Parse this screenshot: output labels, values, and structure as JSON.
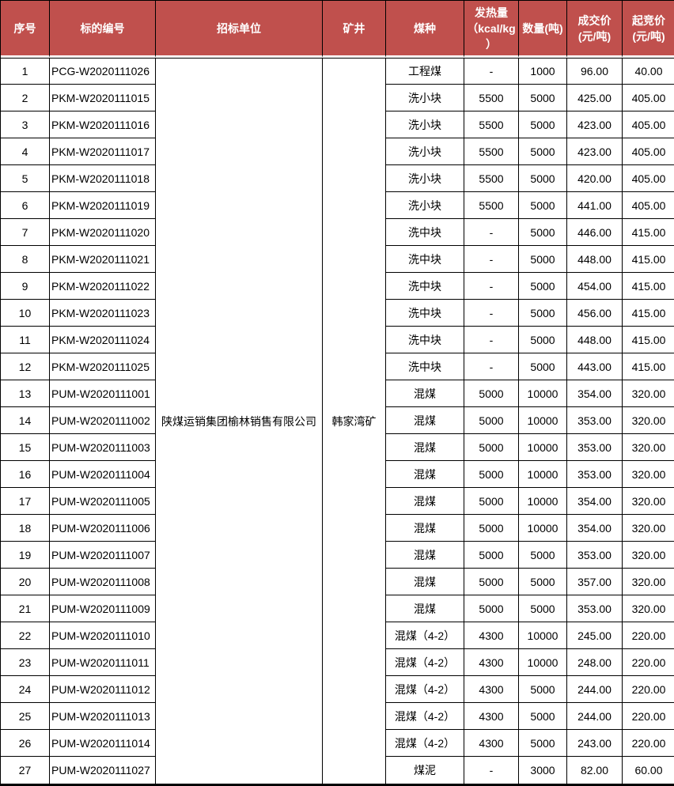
{
  "colors": {
    "header_bg": "#c0504d",
    "header_text": "#ffffff",
    "body_text": "#000000",
    "border": "#000000"
  },
  "table": {
    "columns": [
      {
        "key": "no",
        "label": "序号",
        "lines": [
          "序号"
        ]
      },
      {
        "key": "bid_no",
        "label": "标的编号",
        "lines": [
          "标的编号"
        ]
      },
      {
        "key": "bidding_unit",
        "label": "招标单位",
        "lines": [
          "招标单位"
        ]
      },
      {
        "key": "mine",
        "label": "矿井",
        "lines": [
          "矿井"
        ]
      },
      {
        "key": "coal_type",
        "label": "煤种",
        "lines": [
          "煤种"
        ]
      },
      {
        "key": "calorific",
        "label": "发热量（kcal/kg）",
        "lines": [
          "发热量",
          "（kcal/kg",
          "）"
        ]
      },
      {
        "key": "quantity",
        "label": "数量(吨)",
        "lines": [
          "数量(吨)"
        ]
      },
      {
        "key": "deal_price",
        "label": "成交价(元/吨)",
        "lines": [
          "成交价",
          "(元/吨)"
        ]
      },
      {
        "key": "start_price",
        "label": "起竞价(元/吨)",
        "lines": [
          "起竞价",
          "(元/吨)"
        ]
      }
    ],
    "merged_cells": {
      "bidding_unit": {
        "value": "陕煤运销集团榆林销售有限公司",
        "rowspan": 27
      },
      "mine": {
        "value": "韩家湾矿",
        "rowspan": 27
      }
    },
    "rows": [
      {
        "no": "1",
        "bid_no": "PCG-W2020111026",
        "coal_type": "工程煤",
        "calorific": "-",
        "quantity": "1000",
        "deal_price": "96.00",
        "start_price": "40.00"
      },
      {
        "no": "2",
        "bid_no": "PKM-W2020111015",
        "coal_type": "洗小块",
        "calorific": "5500",
        "quantity": "5000",
        "deal_price": "425.00",
        "start_price": "405.00"
      },
      {
        "no": "3",
        "bid_no": "PKM-W2020111016",
        "coal_type": "洗小块",
        "calorific": "5500",
        "quantity": "5000",
        "deal_price": "423.00",
        "start_price": "405.00"
      },
      {
        "no": "4",
        "bid_no": "PKM-W2020111017",
        "coal_type": "洗小块",
        "calorific": "5500",
        "quantity": "5000",
        "deal_price": "423.00",
        "start_price": "405.00"
      },
      {
        "no": "5",
        "bid_no": "PKM-W2020111018",
        "coal_type": "洗小块",
        "calorific": "5500",
        "quantity": "5000",
        "deal_price": "420.00",
        "start_price": "405.00"
      },
      {
        "no": "6",
        "bid_no": "PKM-W2020111019",
        "coal_type": "洗小块",
        "calorific": "5500",
        "quantity": "5000",
        "deal_price": "441.00",
        "start_price": "405.00"
      },
      {
        "no": "7",
        "bid_no": "PKM-W2020111020",
        "coal_type": "洗中块",
        "calorific": "-",
        "quantity": "5000",
        "deal_price": "446.00",
        "start_price": "415.00"
      },
      {
        "no": "8",
        "bid_no": "PKM-W2020111021",
        "coal_type": "洗中块",
        "calorific": "-",
        "quantity": "5000",
        "deal_price": "448.00",
        "start_price": "415.00"
      },
      {
        "no": "9",
        "bid_no": "PKM-W2020111022",
        "coal_type": "洗中块",
        "calorific": "-",
        "quantity": "5000",
        "deal_price": "454.00",
        "start_price": "415.00"
      },
      {
        "no": "10",
        "bid_no": "PKM-W2020111023",
        "coal_type": "洗中块",
        "calorific": "-",
        "quantity": "5000",
        "deal_price": "456.00",
        "start_price": "415.00"
      },
      {
        "no": "11",
        "bid_no": "PKM-W2020111024",
        "coal_type": "洗中块",
        "calorific": "-",
        "quantity": "5000",
        "deal_price": "448.00",
        "start_price": "415.00"
      },
      {
        "no": "12",
        "bid_no": "PKM-W2020111025",
        "coal_type": "洗中块",
        "calorific": "-",
        "quantity": "5000",
        "deal_price": "443.00",
        "start_price": "415.00"
      },
      {
        "no": "13",
        "bid_no": "PUM-W2020111001",
        "coal_type": "混煤",
        "calorific": "5000",
        "quantity": "10000",
        "deal_price": "354.00",
        "start_price": "320.00"
      },
      {
        "no": "14",
        "bid_no": "PUM-W2020111002",
        "coal_type": "混煤",
        "calorific": "5000",
        "quantity": "10000",
        "deal_price": "353.00",
        "start_price": "320.00"
      },
      {
        "no": "15",
        "bid_no": "PUM-W2020111003",
        "coal_type": "混煤",
        "calorific": "5000",
        "quantity": "10000",
        "deal_price": "353.00",
        "start_price": "320.00"
      },
      {
        "no": "16",
        "bid_no": "PUM-W2020111004",
        "coal_type": "混煤",
        "calorific": "5000",
        "quantity": "10000",
        "deal_price": "353.00",
        "start_price": "320.00"
      },
      {
        "no": "17",
        "bid_no": "PUM-W2020111005",
        "coal_type": "混煤",
        "calorific": "5000",
        "quantity": "10000",
        "deal_price": "354.00",
        "start_price": "320.00"
      },
      {
        "no": "18",
        "bid_no": "PUM-W2020111006",
        "coal_type": "混煤",
        "calorific": "5000",
        "quantity": "10000",
        "deal_price": "354.00",
        "start_price": "320.00"
      },
      {
        "no": "19",
        "bid_no": "PUM-W2020111007",
        "coal_type": "混煤",
        "calorific": "5000",
        "quantity": "5000",
        "deal_price": "353.00",
        "start_price": "320.00"
      },
      {
        "no": "20",
        "bid_no": "PUM-W2020111008",
        "coal_type": "混煤",
        "calorific": "5000",
        "quantity": "5000",
        "deal_price": "357.00",
        "start_price": "320.00"
      },
      {
        "no": "21",
        "bid_no": "PUM-W2020111009",
        "coal_type": "混煤",
        "calorific": "5000",
        "quantity": "5000",
        "deal_price": "353.00",
        "start_price": "320.00"
      },
      {
        "no": "22",
        "bid_no": "PUM-W2020111010",
        "coal_type": "混煤（4-2）",
        "calorific": "4300",
        "quantity": "10000",
        "deal_price": "245.00",
        "start_price": "220.00"
      },
      {
        "no": "23",
        "bid_no": "PUM-W2020111011",
        "coal_type": "混煤（4-2）",
        "calorific": "4300",
        "quantity": "10000",
        "deal_price": "248.00",
        "start_price": "220.00"
      },
      {
        "no": "24",
        "bid_no": "PUM-W2020111012",
        "coal_type": "混煤（4-2）",
        "calorific": "4300",
        "quantity": "5000",
        "deal_price": "244.00",
        "start_price": "220.00"
      },
      {
        "no": "25",
        "bid_no": "PUM-W2020111013",
        "coal_type": "混煤（4-2）",
        "calorific": "4300",
        "quantity": "5000",
        "deal_price": "244.00",
        "start_price": "220.00"
      },
      {
        "no": "26",
        "bid_no": "PUM-W2020111014",
        "coal_type": "混煤（4-2）",
        "calorific": "4300",
        "quantity": "5000",
        "deal_price": "243.00",
        "start_price": "220.00"
      },
      {
        "no": "27",
        "bid_no": "PUM-W2020111027",
        "coal_type": "煤泥",
        "calorific": "-",
        "quantity": "3000",
        "deal_price": "82.00",
        "start_price": "60.00"
      }
    ]
  }
}
